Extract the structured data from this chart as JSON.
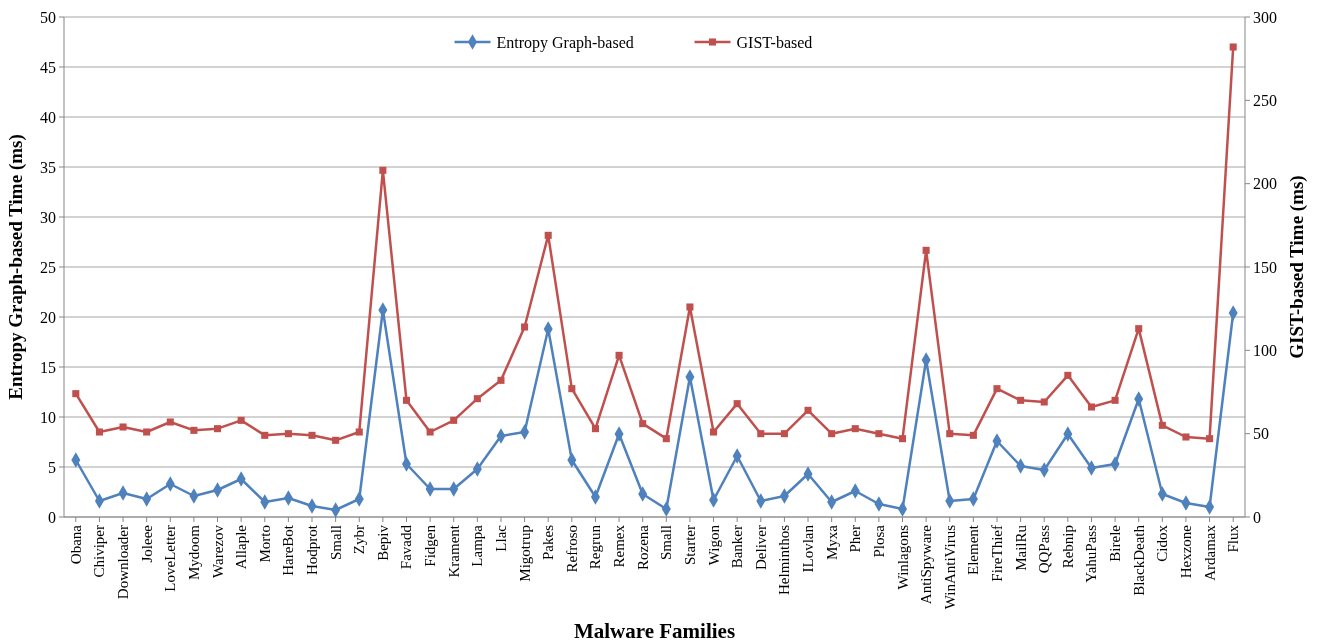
{
  "chart_data": {
    "type": "line",
    "xlabel": "Malware Families",
    "ylabel": "Entropy Graph-based Time (ms)",
    "y2label": "GIST-based Time (ms)",
    "categories": [
      "Obana",
      "Chiviper",
      "Downloader",
      "Joleee",
      "LoveLetter",
      "Mydoom",
      "Warezov",
      "Allaple",
      "Morto",
      "HareBot",
      "Hodprot",
      "Small",
      "Zybr",
      "Bepiv",
      "Favadd",
      "Fidgen",
      "Krament",
      "Lampa",
      "Llac",
      "Migotrup",
      "Pakes",
      "Refroso",
      "Regrun",
      "Remex",
      "Rozena",
      "Small",
      "Starter",
      "Wigon",
      "Banker",
      "Deliver",
      "Helminthos",
      "ILovlan",
      "Myxa",
      "Pher",
      "Plosa",
      "Winlagons",
      "AntiSpyware",
      "WinAntiVirus",
      "Element",
      "FireThief",
      "MailRu",
      "QQPass",
      "Rebnip",
      "YahuPass",
      "Birele",
      "BlackDeath",
      "Cidox",
      "Hexzone",
      "Ardamax",
      "Flux"
    ],
    "series": [
      {
        "name": "Entropy Graph-based",
        "color": "#4f81bd",
        "marker": "diamond",
        "values": [
          5.7,
          1.6,
          2.4,
          1.8,
          3.3,
          2.1,
          2.7,
          3.8,
          1.5,
          1.9,
          1.1,
          0.7,
          1.8,
          20.7,
          5.3,
          2.8,
          2.8,
          4.8,
          8.1,
          8.5,
          18.8,
          5.7,
          2.0,
          8.3,
          2.3,
          0.8,
          14.0,
          1.7,
          6.1,
          1.6,
          2.1,
          4.3,
          1.5,
          2.6,
          1.3,
          0.8,
          15.7,
          1.6,
          1.8,
          7.6,
          5.1,
          4.7,
          8.3,
          4.9,
          5.3,
          11.8,
          2.3,
          1.4,
          1.0,
          20.4
        ]
      },
      {
        "name": "GIST-based",
        "color": "#c0504d",
        "marker": "square",
        "axis": "y2",
        "values": [
          74,
          51,
          54,
          51,
          57,
          52,
          53,
          58,
          49,
          50,
          49,
          46,
          51,
          208,
          70,
          51,
          58,
          71,
          82,
          114,
          169,
          77,
          53,
          97,
          56,
          47,
          126,
          51,
          68,
          50,
          50,
          64,
          50,
          53,
          50,
          47,
          160,
          50,
          49,
          77,
          70,
          69,
          85,
          66,
          70,
          113,
          55,
          48,
          47,
          282
        ]
      }
    ],
    "ylim": [
      0,
      50
    ],
    "yticks": [
      0,
      5,
      10,
      15,
      20,
      25,
      30,
      35,
      40,
      45,
      50
    ],
    "y2lim": [
      0,
      300
    ],
    "y2ticks": [
      0,
      50,
      100,
      150,
      200,
      250,
      300
    ],
    "grid": "y",
    "legend": "top"
  }
}
